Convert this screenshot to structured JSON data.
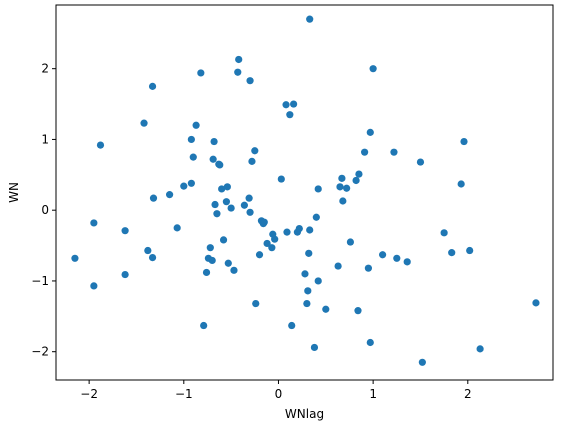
{
  "chart_data": {
    "type": "scatter",
    "xlabel": "WNlag",
    "ylabel": "WN",
    "xlim": [
      -2.35,
      2.9
    ],
    "ylim": [
      -2.4,
      2.9
    ],
    "xticks": [
      -2,
      -1,
      0,
      1,
      2
    ],
    "yticks": [
      -2,
      -1,
      0,
      1,
      2
    ],
    "xtick_labels": [
      "−2",
      "−1",
      "0",
      "1",
      "2"
    ],
    "ytick_labels": [
      "−2",
      "−1",
      "0",
      "1",
      "2"
    ],
    "grid": false,
    "marker_color": "#1f77b4",
    "series": [
      {
        "x": [
          -2.15,
          -1.95,
          -1.95,
          -1.88,
          -1.62,
          -1.62,
          -1.42,
          -1.38,
          -1.33,
          -1.33,
          -1.32,
          -1.15,
          -1.07,
          -1.0,
          -0.92,
          -0.92,
          -0.9,
          -0.87,
          -0.82,
          -0.79,
          -0.76,
          -0.74,
          -0.72,
          -0.7,
          -0.69,
          -0.68,
          -0.67,
          -0.65,
          -0.63,
          -0.62,
          -0.6,
          -0.58,
          -0.55,
          -0.54,
          -0.53,
          -0.5,
          -0.47,
          -0.43,
          -0.42,
          -0.36,
          -0.31,
          -0.3,
          -0.3,
          -0.28,
          -0.25,
          -0.24,
          -0.2,
          -0.18,
          -0.16,
          -0.15,
          -0.12,
          -0.07,
          -0.06,
          -0.04,
          0.03,
          0.08,
          0.09,
          0.12,
          0.14,
          0.16,
          0.2,
          0.22,
          0.28,
          0.3,
          0.31,
          0.32,
          0.33,
          0.33,
          0.38,
          0.4,
          0.42,
          0.42,
          0.5,
          0.63,
          0.65,
          0.67,
          0.68,
          0.72,
          0.76,
          0.82,
          0.84,
          0.85,
          0.91,
          0.95,
          0.97,
          0.97,
          1.0,
          1.1,
          1.22,
          1.25,
          1.36,
          1.5,
          1.52,
          1.75,
          1.83,
          1.93,
          1.96,
          2.02,
          2.13,
          2.72
        ],
        "y": [
          -0.68,
          -0.18,
          -1.07,
          0.92,
          -0.29,
          -0.91,
          1.23,
          -0.57,
          -0.67,
          1.75,
          0.17,
          0.22,
          -0.25,
          0.34,
          0.38,
          1.0,
          0.75,
          1.2,
          1.94,
          -1.63,
          -0.88,
          -0.68,
          -0.53,
          -0.71,
          0.72,
          0.97,
          0.08,
          -0.05,
          0.65,
          0.64,
          0.3,
          -0.42,
          0.12,
          0.33,
          -0.75,
          0.03,
          -0.85,
          1.95,
          2.13,
          0.07,
          0.17,
          -0.03,
          1.83,
          0.69,
          0.84,
          -1.32,
          -0.63,
          -0.15,
          -0.19,
          -0.17,
          -0.47,
          -0.53,
          -0.34,
          -0.41,
          0.44,
          1.49,
          -0.31,
          1.35,
          -1.63,
          1.5,
          -0.31,
          -0.26,
          -0.9,
          -1.32,
          -1.14,
          -0.61,
          -0.28,
          2.7,
          -1.94,
          -0.1,
          -1.0,
          0.3,
          -1.4,
          -0.79,
          0.33,
          0.45,
          0.13,
          0.31,
          -0.45,
          0.42,
          -1.42,
          0.51,
          0.82,
          -0.82,
          -1.87,
          1.1,
          2.0,
          -0.63,
          0.82,
          -0.68,
          -0.73,
          0.68,
          -2.15,
          -0.32,
          -0.6,
          0.37,
          0.97,
          -0.57,
          -1.96,
          -1.31
        ]
      }
    ]
  }
}
